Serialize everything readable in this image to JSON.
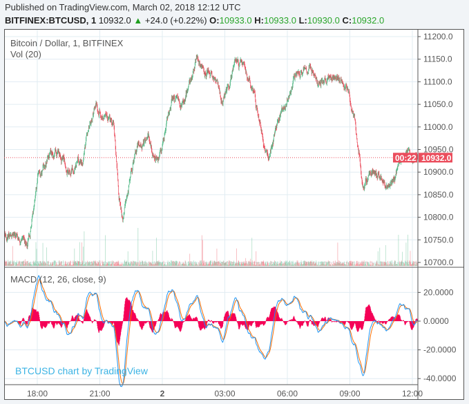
{
  "header": {
    "published": "Published on TradingView.com, March 02, 2018 12:12 UTC",
    "symbol": "BITFINEX:BTCUSD, 1",
    "last": "10932.0",
    "change": "+24.0 (+0.22%)",
    "o_label": "O:",
    "o": "10933.0",
    "h_label": "H:",
    "h": "10933.0",
    "l_label": "L:",
    "l": "10930.0",
    "c_label": "C:",
    "c": "10932.0"
  },
  "legend": {
    "title": "Bitcoin / Dollar, 1, BITFINEX",
    "volume": "Vol (20)",
    "macd": "MACD (12, 26, close, 9)"
  },
  "watermark": "BTCUSD chart by TradingView",
  "colors": {
    "up": "#53b987",
    "down": "#eb4d5c",
    "macd": "#2196f3",
    "signal": "#ff6d00",
    "histogram": "#f50057",
    "price_label": "#eb4d5c",
    "grid": "#e1ecf2",
    "watermark": "#3bb3e4"
  },
  "chart_data": [
    {
      "type": "candlestick",
      "interval": "1 minute",
      "price_axis": {
        "ticks": [
          "10700.0",
          "10750.0",
          "10800.0",
          "10850.0",
          "10900.0",
          "10950.0",
          "11000.0",
          "11050.0",
          "11100.0",
          "11150.0",
          "11200.0"
        ],
        "range": [
          10690,
          11220
        ]
      },
      "time_axis": {
        "ticks": [
          "18:00",
          "21:00",
          "2",
          "03:00",
          "06:00",
          "09:00",
          "12:00"
        ]
      },
      "current_price_label": "10932.0",
      "countdown_label": "00:22",
      "approx_price_path": [
        [
          "03-01 16:33",
          10760
        ],
        [
          "03-01 17:32",
          10740
        ],
        [
          "03-01 17:48",
          10800
        ],
        [
          "03-01 18:02",
          10880
        ],
        [
          "03-01 18:32",
          10930
        ],
        [
          "03-01 19:02",
          10950
        ],
        [
          "03-01 19:32",
          10900
        ],
        [
          "03-01 20:11",
          10930
        ],
        [
          "03-01 20:31",
          11000
        ],
        [
          "03-01 20:51",
          11060
        ],
        [
          "03-01 21:11",
          11020
        ],
        [
          "03-01 21:41",
          11000
        ],
        [
          "03-01 21:55",
          10850
        ],
        [
          "03-01 22:07",
          10790
        ],
        [
          "03-01 22:30",
          10900
        ],
        [
          "03-01 22:50",
          10950
        ],
        [
          "03-01 23:20",
          10970
        ],
        [
          "03-01 23:50",
          10920
        ],
        [
          "03-02 00:10",
          11000
        ],
        [
          "03-02 00:30",
          11060
        ],
        [
          "03-02 01:00",
          11050
        ],
        [
          "03-02 01:20",
          11100
        ],
        [
          "03-02 01:39",
          11150
        ],
        [
          "03-02 01:59",
          11120
        ],
        [
          "03-02 02:29",
          11110
        ],
        [
          "03-02 02:53",
          11060
        ],
        [
          "03-02 03:29",
          11130
        ],
        [
          "03-02 03:59",
          11140
        ],
        [
          "03-02 04:18",
          11080
        ],
        [
          "03-02 04:44",
          11000
        ],
        [
          "03-02 04:58",
          10950
        ],
        [
          "03-02 05:08",
          10930
        ],
        [
          "03-02 05:28",
          11000
        ],
        [
          "03-02 05:48",
          11040
        ],
        [
          "03-02 06:08",
          11080
        ],
        [
          "03-02 06:28",
          11120
        ],
        [
          "03-02 06:48",
          11130
        ],
        [
          "03-02 07:08",
          11140
        ],
        [
          "03-02 07:28",
          11090
        ],
        [
          "03-02 07:57",
          11110
        ],
        [
          "03-02 08:27",
          11110
        ],
        [
          "03-02 08:57",
          11070
        ],
        [
          "03-02 09:17",
          11000
        ],
        [
          "03-02 09:27",
          10940
        ],
        [
          "03-02 09:37",
          10870
        ],
        [
          "03-02 10:07",
          10900
        ],
        [
          "03-02 10:37",
          10870
        ],
        [
          "03-02 11:07",
          10880
        ],
        [
          "03-02 11:37",
          10940
        ],
        [
          "03-02 11:56",
          10932
        ]
      ]
    },
    {
      "type": "line",
      "name": "MACD (12, 26, close, 9)",
      "axis": {
        "ticks": [
          "20.0000",
          "0.0000",
          "-20.0000",
          "-40.0000"
        ],
        "range": [
          -45,
          35
        ]
      },
      "series": [
        "MACD",
        "Signal",
        "Histogram"
      ]
    }
  ]
}
